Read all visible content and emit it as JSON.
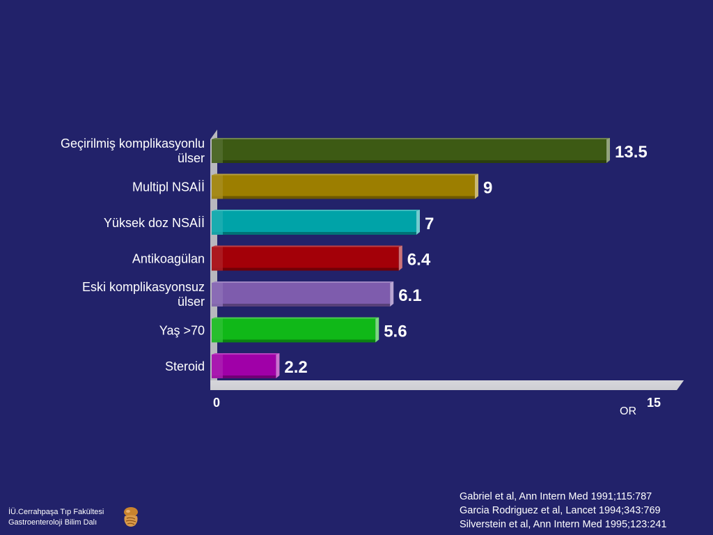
{
  "chart_data": {
    "type": "bar",
    "orientation": "horizontal",
    "categories": [
      [
        "Geçirilmiş komplikasyonlu",
        "ülser"
      ],
      [
        "Multipl NSAİİ"
      ],
      [
        "Yüksek doz NSAİİ"
      ],
      [
        "Antikoagülan"
      ],
      [
        "Eski komplikasyonsuz",
        "ülser"
      ],
      [
        "Yaş >70"
      ],
      [
        "Steroid"
      ]
    ],
    "values": [
      13.5,
      9,
      7,
      6.4,
      6.1,
      5.6,
      2.2
    ],
    "value_labels": [
      "13.5",
      "9",
      "7",
      "6.4",
      "6.1",
      "5.6",
      "2.2"
    ],
    "bar_colors": [
      "#3d5a14",
      "#9c7e00",
      "#00a3a8",
      "#a30008",
      "#7e5cad",
      "#10b818",
      "#a000a8"
    ],
    "xlabel": "OR",
    "xlim": [
      0,
      15
    ],
    "x_ticks": [
      "0",
      "15"
    ],
    "grid": false,
    "style": "3d"
  },
  "references": [
    "Gabriel et al, Ann Intern Med 1991;115:787",
    "Garcia Rodriguez et al, Lancet 1994;343:769",
    "Silverstein et al, Ann Intern Med 1995;123:241"
  ],
  "footer": {
    "line1": "İÜ.Cerrahpaşa Tıp Fakültesi",
    "line2": "Gastroenteroloji Bilim Dalı",
    "logo_icon": "digestive-system-icon"
  },
  "colors": {
    "background": "#22226a",
    "axis_frame": "#c8c8cc",
    "text": "#ffffff"
  }
}
